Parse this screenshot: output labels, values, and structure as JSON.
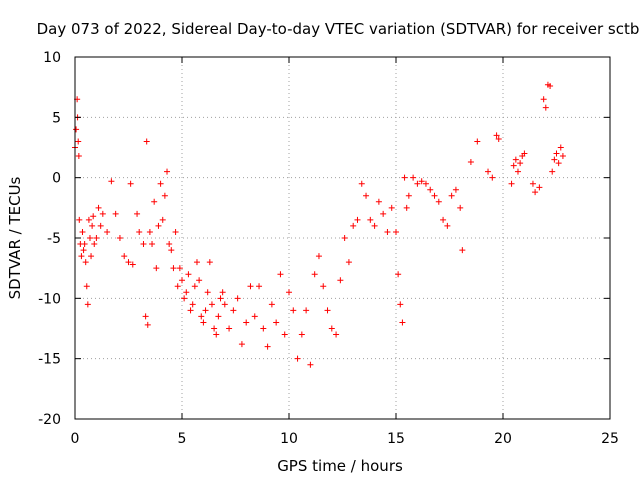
{
  "chart_data": {
    "type": "scatter",
    "title": "Day 073 of 2022, Sidereal Day-to-day VTEC variation (SDTVAR) for receiver sctb",
    "xlabel": "GPS time / hours",
    "ylabel": "SDTVAR / TECUs",
    "xlim": [
      0,
      25
    ],
    "ylim": [
      -20,
      10
    ],
    "xticks": [
      0,
      5,
      10,
      15,
      20,
      25
    ],
    "xtick_labels": [
      "0",
      "5",
      "10",
      "15",
      "20",
      "25"
    ],
    "yticks": [
      -20,
      -15,
      -10,
      -5,
      0,
      5,
      10
    ],
    "ytick_labels": [
      "-20",
      "-15",
      "-10",
      "-5",
      "0",
      "5",
      "10"
    ],
    "grid": true,
    "marker": "+",
    "color": "#ff0000",
    "series": [
      {
        "name": "SDTVAR",
        "x": [
          0.0,
          0.05,
          0.1,
          0.12,
          0.15,
          0.18,
          0.2,
          0.25,
          0.3,
          0.35,
          0.4,
          0.45,
          0.5,
          0.55,
          0.6,
          0.65,
          0.7,
          0.75,
          0.8,
          0.85,
          0.9,
          1.0,
          1.1,
          1.2,
          1.3,
          1.5,
          1.7,
          1.9,
          2.1,
          2.3,
          2.5,
          2.6,
          2.7,
          2.9,
          3.0,
          3.2,
          3.3,
          3.35,
          3.4,
          3.5,
          3.6,
          3.7,
          3.8,
          3.9,
          4.0,
          4.1,
          4.2,
          4.3,
          4.4,
          4.5,
          4.6,
          4.7,
          4.8,
          4.9,
          5.0,
          5.1,
          5.2,
          5.3,
          5.4,
          5.5,
          5.6,
          5.7,
          5.8,
          5.9,
          6.0,
          6.1,
          6.2,
          6.3,
          6.4,
          6.5,
          6.6,
          6.7,
          6.8,
          6.9,
          7.0,
          7.2,
          7.4,
          7.6,
          7.8,
          8.0,
          8.2,
          8.4,
          8.6,
          8.8,
          9.0,
          9.2,
          9.4,
          9.6,
          9.8,
          10.0,
          10.2,
          10.4,
          10.6,
          10.8,
          11.0,
          11.2,
          11.4,
          11.6,
          11.8,
          12.0,
          12.2,
          12.4,
          12.6,
          12.8,
          13.0,
          13.2,
          13.4,
          13.6,
          13.8,
          14.0,
          14.2,
          14.4,
          14.6,
          14.8,
          15.0,
          15.1,
          15.2,
          15.3,
          15.4,
          15.5,
          15.6,
          15.8,
          16.0,
          16.2,
          16.4,
          16.6,
          16.8,
          17.0,
          17.2,
          17.4,
          17.6,
          17.8,
          18.0,
          18.1,
          18.5,
          18.8,
          19.3,
          19.5,
          19.7,
          19.8,
          20.4,
          20.5,
          20.6,
          20.7,
          20.8,
          20.9,
          21.0,
          21.4,
          21.5,
          21.7,
          21.9,
          22.0,
          22.1,
          22.2,
          22.3,
          22.4,
          22.5,
          22.6,
          22.7,
          22.8
        ],
        "y": [
          2.5,
          4.0,
          6.5,
          5.0,
          3.0,
          1.8,
          -3.5,
          -5.5,
          -6.5,
          -4.5,
          -6.0,
          -5.5,
          -7.0,
          -9.0,
          -10.5,
          -3.5,
          -5.0,
          -6.5,
          -4.0,
          -3.2,
          -5.5,
          -5.0,
          -2.5,
          -4.0,
          -3.0,
          -4.5,
          -0.3,
          -3.0,
          -5.0,
          -6.5,
          -7.0,
          -0.5,
          -7.2,
          -3.0,
          -4.5,
          -5.5,
          -11.5,
          3.0,
          -12.2,
          -4.5,
          -5.5,
          -2.0,
          -7.5,
          -4.0,
          -0.5,
          -3.5,
          -1.5,
          0.5,
          -5.5,
          -6.0,
          -7.5,
          -4.5,
          -9.0,
          -7.5,
          -8.5,
          -10.0,
          -9.5,
          -8.0,
          -11.0,
          -10.5,
          -9.0,
          -7.0,
          -8.5,
          -11.5,
          -12.0,
          -11.0,
          -9.5,
          -7.0,
          -10.5,
          -12.5,
          -13.0,
          -11.5,
          -10.0,
          -9.5,
          -10.5,
          -12.5,
          -11.0,
          -10.0,
          -13.8,
          -12.0,
          -9.0,
          -11.5,
          -9.0,
          -12.5,
          -14.0,
          -10.5,
          -12.0,
          -8.0,
          -13.0,
          -9.5,
          -11.0,
          -15.0,
          -13.0,
          -11.0,
          -15.5,
          -8.0,
          -6.5,
          -9.0,
          -11.0,
          -12.5,
          -13.0,
          -8.5,
          -5.0,
          -7.0,
          -4.0,
          -3.5,
          -0.5,
          -1.5,
          -3.5,
          -4.0,
          -2.0,
          -3.0,
          -4.5,
          -2.5,
          -4.5,
          -8.0,
          -10.5,
          -12.0,
          0.0,
          -2.5,
          -1.5,
          0.0,
          -0.5,
          -0.3,
          -0.5,
          -1.0,
          -1.5,
          -2.0,
          -3.5,
          -4.0,
          -1.5,
          -1.0,
          -2.5,
          -6.0,
          1.3,
          3.0,
          0.5,
          0.0,
          3.5,
          3.2,
          -0.5,
          1.0,
          1.5,
          0.5,
          1.2,
          1.8,
          2.0,
          -0.5,
          -1.2,
          -0.8,
          6.5,
          5.8,
          7.7,
          7.6,
          0.5,
          1.5,
          2.0,
          1.2,
          2.5,
          1.8
        ]
      }
    ]
  }
}
